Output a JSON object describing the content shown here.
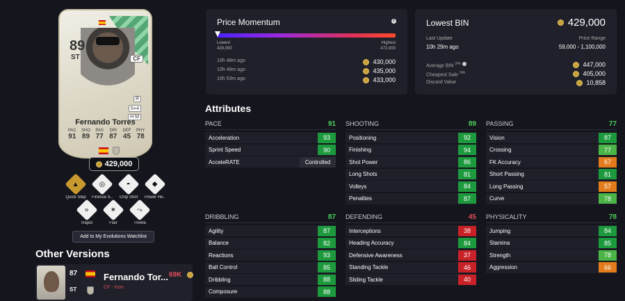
{
  "card": {
    "rating": "89",
    "position": "ST",
    "alt_position": "CF",
    "side_badges": [
      "R",
      "5⋄4",
      "H M"
    ],
    "name": "Fernando Torres",
    "stat_labels": [
      "PAC",
      "SHO",
      "PAS",
      "DRI",
      "DEF",
      "PHY"
    ],
    "stat_values": [
      "91",
      "89",
      "77",
      "87",
      "45",
      "78"
    ],
    "price": "429,000"
  },
  "playstyles": [
    {
      "label": "Quick Step",
      "icon": "quick-step-icon",
      "glyph": "▲",
      "gold": true
    },
    {
      "label": "Finesse S...",
      "icon": "finesse-shot-icon",
      "glyph": "◎",
      "gold": false
    },
    {
      "label": "Chip Shot",
      "icon": "chip-shot-icon",
      "glyph": "◓",
      "gold": false
    },
    {
      "label": "Power He...",
      "icon": "power-header-icon",
      "glyph": "◆",
      "gold": false
    },
    {
      "label": "Rapid",
      "icon": "rapid-icon",
      "glyph": "»",
      "gold": false
    },
    {
      "label": "Flair",
      "icon": "flair-icon",
      "glyph": "✶",
      "gold": false
    },
    {
      "label": "Trivela",
      "icon": "trivela-icon",
      "glyph": "⤳",
      "gold": false
    }
  ],
  "watchlist_button": "Add to My Evolutions Watchlist",
  "other_versions": {
    "title": "Other Versions",
    "items": [
      {
        "rating": "87",
        "position": "ST",
        "name": "Fernando Tor...",
        "subtitle": "CF - Icon",
        "price": "69K"
      }
    ]
  },
  "price_momentum": {
    "title": "Price Momentum",
    "info": "i",
    "lowest_label": "Lowest",
    "lowest_value": "429,000",
    "highest_label": "Highest",
    "highest_value": "472,000",
    "history": [
      {
        "time": "10h 48m ago",
        "value": "430,000"
      },
      {
        "time": "10h 49m ago",
        "value": "435,000"
      },
      {
        "time": "10h 53m ago",
        "value": "433,000"
      }
    ]
  },
  "lowest_bin": {
    "title": "Lowest BIN",
    "value": "429,000",
    "last_update_label": "Last Update",
    "last_update_value": "10h 29m ago",
    "price_range_label": "Price Range",
    "price_range_value": "59,000 - 1,100,000",
    "avg_label": "Average BIN",
    "avg_suffix": "24h",
    "avg_value": "447,000",
    "cheapest_label": "Cheapest Sale",
    "cheapest_suffix": "24h",
    "cheapest_value": "405,000",
    "discard_label": "Discard Value",
    "discard_value": "10,858"
  },
  "attributes": {
    "title": "Attributes",
    "groups": [
      {
        "name": "PACE",
        "value": "91",
        "tone": "g",
        "rows": [
          {
            "name": "Acceleration",
            "value": "93",
            "tone": "g"
          },
          {
            "name": "Sprint Speed",
            "value": "90",
            "tone": "g"
          },
          {
            "name": "AcceleRATE",
            "value": "Controlled",
            "tone": "wide"
          }
        ]
      },
      {
        "name": "SHOOTING",
        "value": "89",
        "tone": "g",
        "rows": [
          {
            "name": "Positioning",
            "value": "92",
            "tone": "g"
          },
          {
            "name": "Finishing",
            "value": "94",
            "tone": "g"
          },
          {
            "name": "Shot Power",
            "value": "86",
            "tone": "g"
          },
          {
            "name": "Long Shots",
            "value": "81",
            "tone": "g"
          },
          {
            "name": "Volleys",
            "value": "84",
            "tone": "g"
          },
          {
            "name": "Penalties",
            "value": "87",
            "tone": "g"
          }
        ]
      },
      {
        "name": "PASSING",
        "value": "77",
        "tone": "g",
        "rows": [
          {
            "name": "Vision",
            "value": "87",
            "tone": "g"
          },
          {
            "name": "Crossing",
            "value": "77",
            "tone": "gl"
          },
          {
            "name": "FK Accuracy",
            "value": "67",
            "tone": "o"
          },
          {
            "name": "Short Passing",
            "value": "81",
            "tone": "g"
          },
          {
            "name": "Long Passing",
            "value": "57",
            "tone": "o"
          },
          {
            "name": "Curve",
            "value": "78",
            "tone": "gl"
          }
        ]
      },
      {
        "name": "DRIBBLING",
        "value": "87",
        "tone": "g",
        "rows": [
          {
            "name": "Agility",
            "value": "87",
            "tone": "g"
          },
          {
            "name": "Balance",
            "value": "82",
            "tone": "g"
          },
          {
            "name": "Reactions",
            "value": "93",
            "tone": "g"
          },
          {
            "name": "Ball Control",
            "value": "85",
            "tone": "g"
          },
          {
            "name": "Dribbling",
            "value": "88",
            "tone": "g"
          },
          {
            "name": "Composure",
            "value": "88",
            "tone": "g"
          }
        ]
      },
      {
        "name": "DEFENDING",
        "value": "45",
        "tone": "r",
        "rows": [
          {
            "name": "Interceptions",
            "value": "38",
            "tone": "r"
          },
          {
            "name": "Heading Accuracy",
            "value": "84",
            "tone": "g"
          },
          {
            "name": "Defensive Awareness",
            "value": "37",
            "tone": "r"
          },
          {
            "name": "Standing Tackle",
            "value": "46",
            "tone": "r"
          },
          {
            "name": "Sliding Tackle",
            "value": "40",
            "tone": "r"
          }
        ]
      },
      {
        "name": "PHYSICALITY",
        "value": "78",
        "tone": "g",
        "rows": [
          {
            "name": "Jumping",
            "value": "84",
            "tone": "g"
          },
          {
            "name": "Stamina",
            "value": "85",
            "tone": "g"
          },
          {
            "name": "Strength",
            "value": "78",
            "tone": "gl"
          },
          {
            "name": "Aggression",
            "value": "66",
            "tone": "o"
          }
        ]
      }
    ]
  }
}
